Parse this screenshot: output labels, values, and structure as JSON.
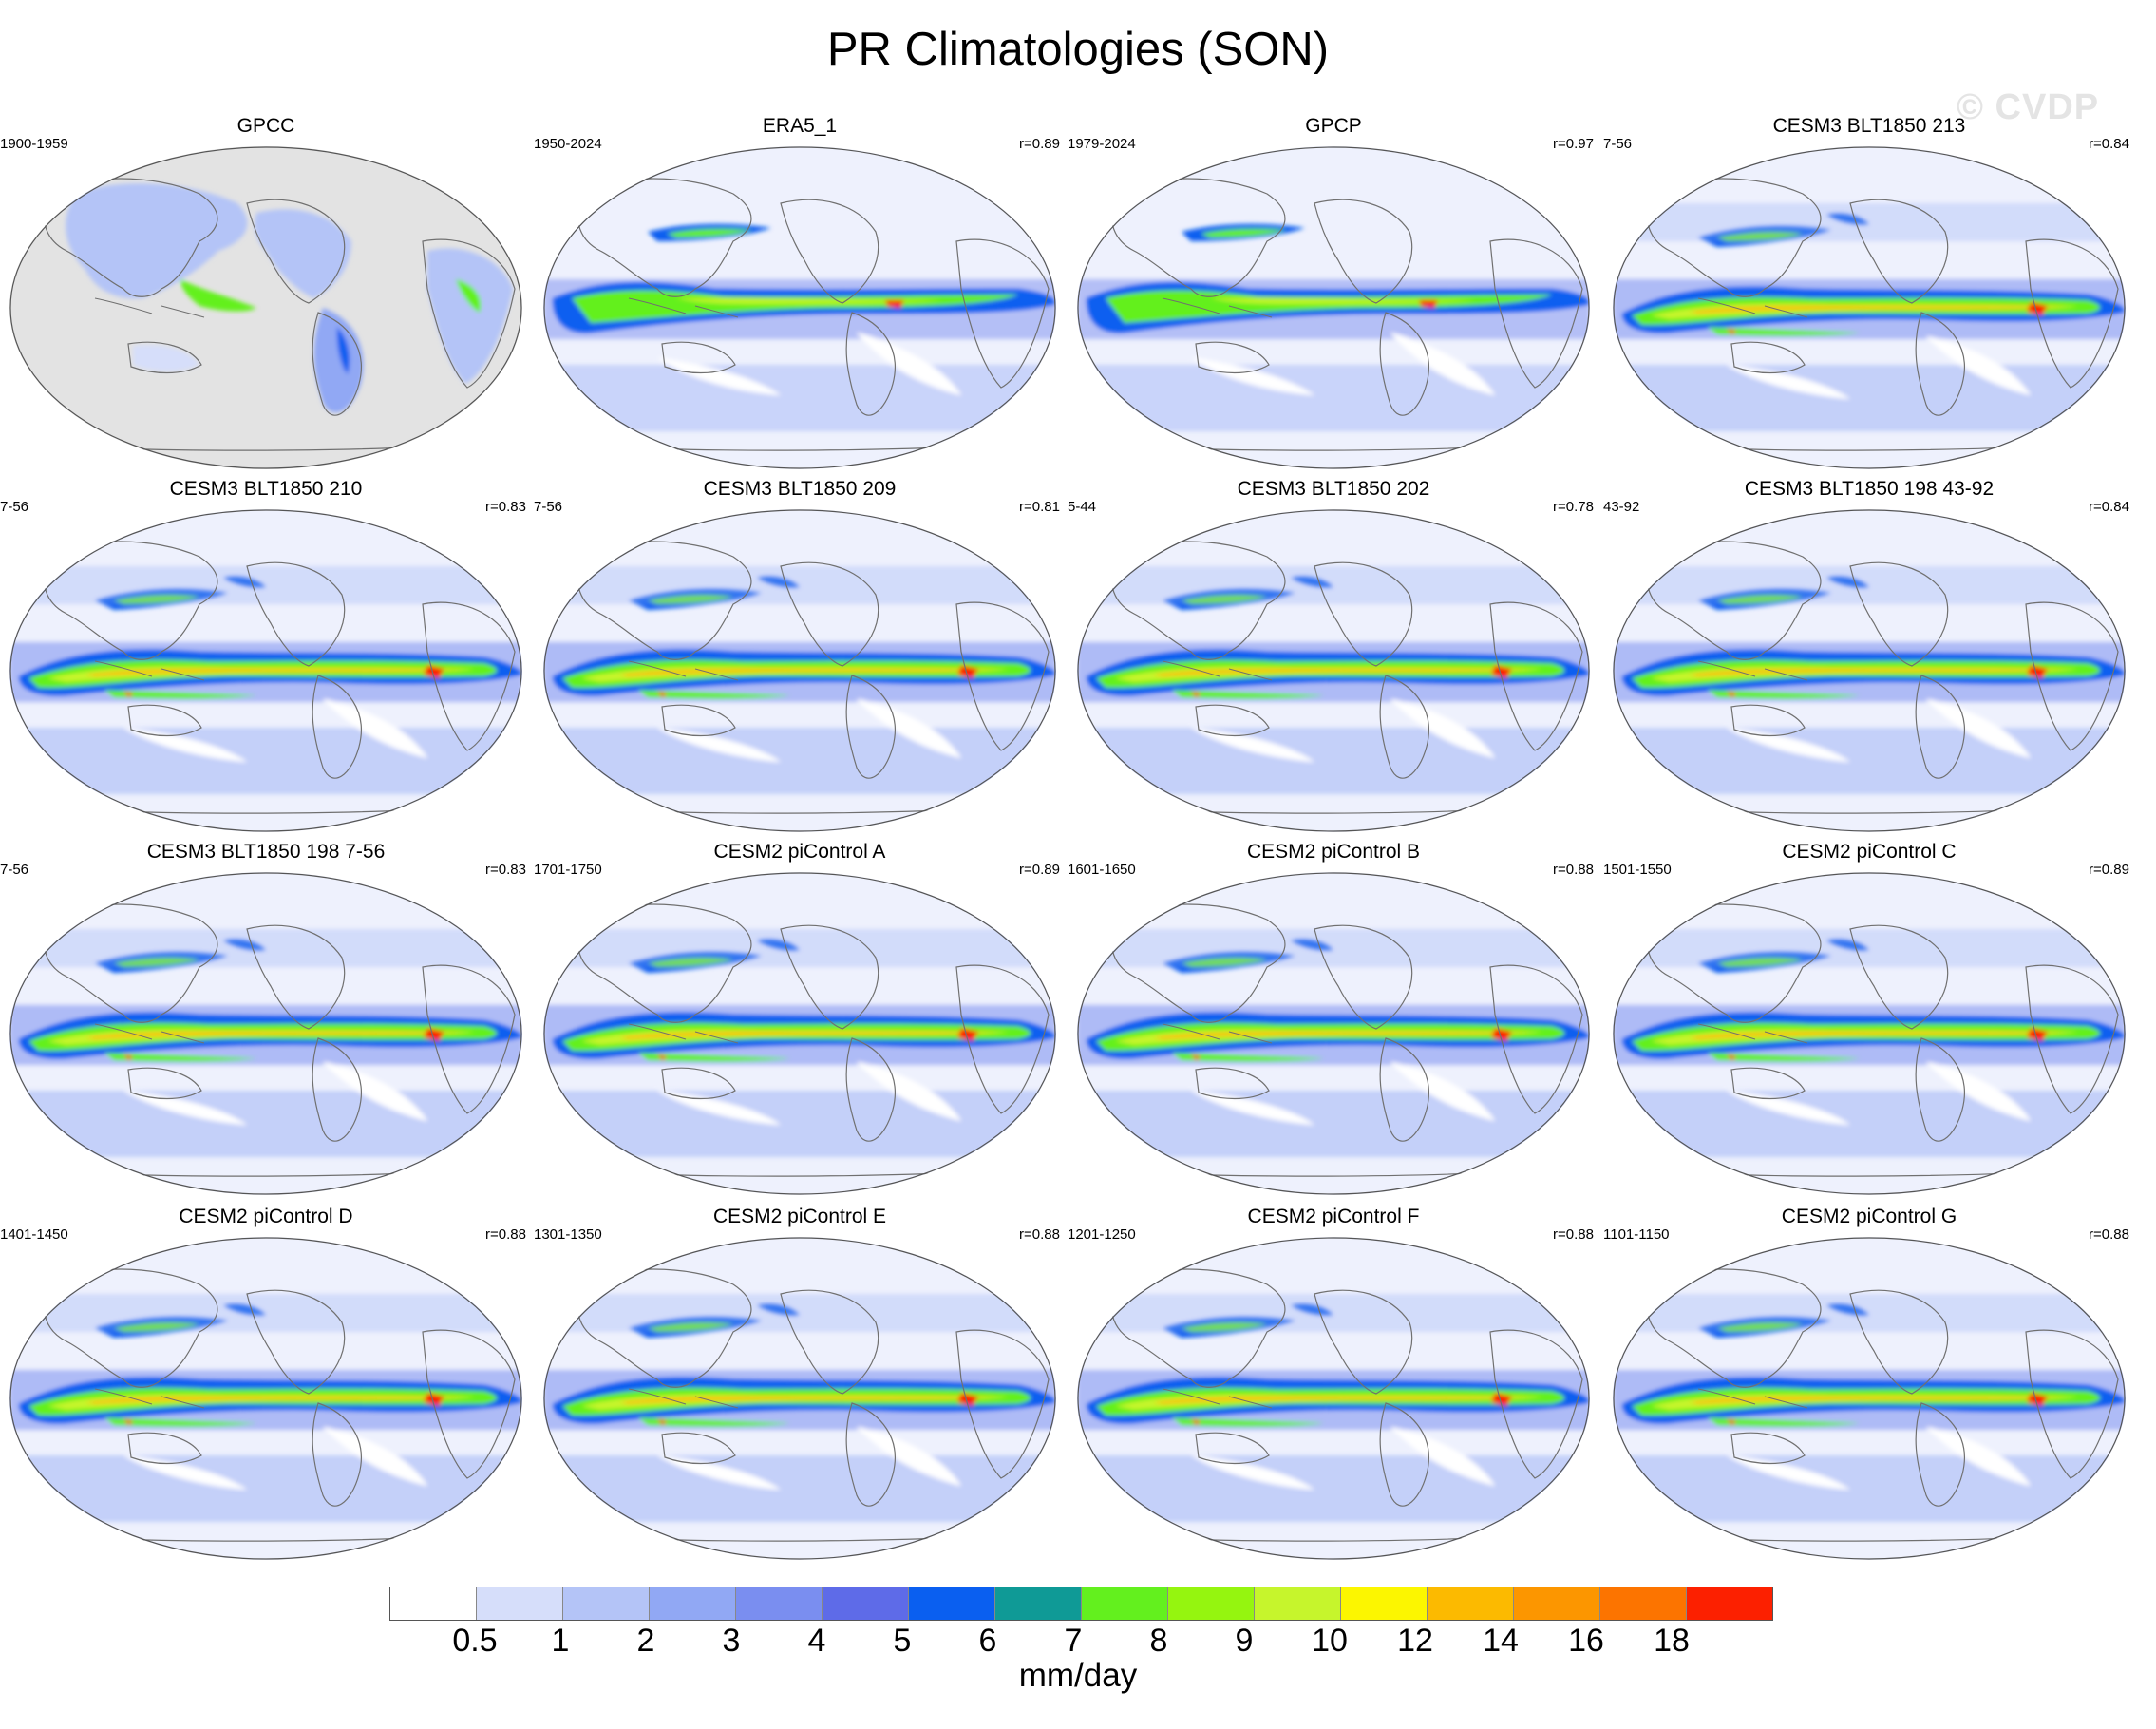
{
  "title": "PR Climatologies (SON)",
  "watermark": "© CVDP",
  "panels": [
    {
      "title": "GPCC",
      "years": "1900-1959",
      "corr": "",
      "source": "obs-land"
    },
    {
      "title": "ERA5_1",
      "years": "1950-2024",
      "corr": "r=0.89",
      "source": "obs"
    },
    {
      "title": "GPCP",
      "years": "1979-2024",
      "corr": "r=0.97",
      "source": "obs"
    },
    {
      "title": "CESM3 BLT1850 213",
      "years": "7-56",
      "corr": "r=0.84",
      "source": "model"
    },
    {
      "title": "CESM3 BLT1850 210",
      "years": "7-56",
      "corr": "r=0.83",
      "source": "model"
    },
    {
      "title": "CESM3 BLT1850 209",
      "years": "7-56",
      "corr": "r=0.81",
      "source": "model"
    },
    {
      "title": "CESM3 BLT1850 202",
      "years": "5-44",
      "corr": "r=0.78",
      "source": "model"
    },
    {
      "title": "CESM3 BLT1850 198 43-92",
      "years": "43-92",
      "corr": "r=0.84",
      "source": "model"
    },
    {
      "title": "CESM3 BLT1850 198 7-56",
      "years": "7-56",
      "corr": "r=0.83",
      "source": "model"
    },
    {
      "title": "CESM2 piControl A",
      "years": "1701-1750",
      "corr": "r=0.89",
      "source": "model"
    },
    {
      "title": "CESM2 piControl B",
      "years": "1601-1650",
      "corr": "r=0.88",
      "source": "model"
    },
    {
      "title": "CESM2 piControl C",
      "years": "1501-1550",
      "corr": "r=0.89",
      "source": "model"
    },
    {
      "title": "CESM2 piControl D",
      "years": "1401-1450",
      "corr": "r=0.88",
      "source": "model"
    },
    {
      "title": "CESM2 piControl E",
      "years": "1301-1350",
      "corr": "r=0.88",
      "source": "model"
    },
    {
      "title": "CESM2 piControl F",
      "years": "1201-1250",
      "corr": "r=0.88",
      "source": "model"
    },
    {
      "title": "CESM2 piControl G",
      "years": "1101-1150",
      "corr": "r=0.88",
      "source": "model"
    }
  ],
  "colorbar": {
    "units": "mm/day",
    "ticks": [
      "0.5",
      "1",
      "2",
      "3",
      "4",
      "5",
      "6",
      "7",
      "8",
      "9",
      "10",
      "12",
      "14",
      "16",
      "18"
    ],
    "colors": [
      "#ffffff",
      "#d6defa",
      "#b4c4f7",
      "#91a8f4",
      "#7a8ef0",
      "#5e6be8",
      "#0a5ff0",
      "#0f9a96",
      "#63f01e",
      "#95f50f",
      "#c6f52c",
      "#fcf600",
      "#fcba00",
      "#fc9600",
      "#fc7400",
      "#fc2000"
    ]
  }
}
